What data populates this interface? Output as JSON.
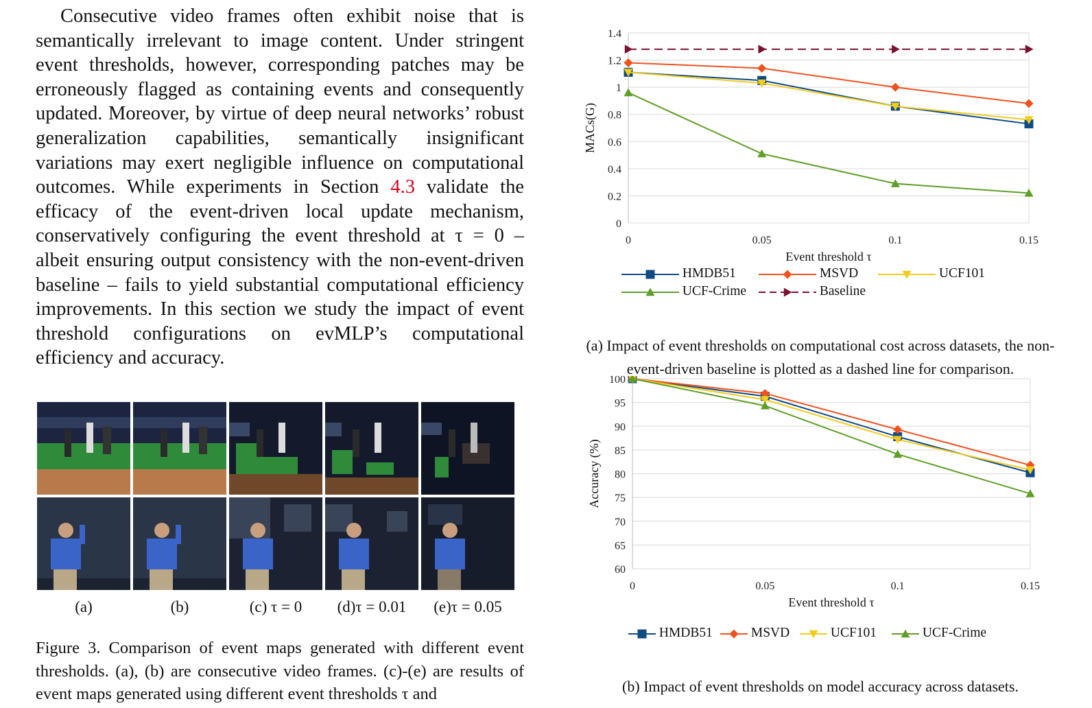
{
  "paragraph": {
    "before_ref": "Consecutive video frames often exhibit noise that is semantically irrelevant to image content. Under stringent event thresholds, however, corresponding patches may be erroneously flagged as containing events and consequently updated. Moreover, by virtue of deep neural networks’ robust generalization capabilities, semantically insignificant variations may exert negligible influence on computational outcomes. While experiments in Section ",
    "ref": "4.3",
    "after_ref": " validate the efficacy of the event-driven local update mechanism, conservatively configuring the event threshold at τ = 0 – albeit ensuring output consistency with the non-event-driven baseline – fails to yield substantial computational efficiency improvements. In this section we study the impact of event threshold configurations on evMLP’s computational efficiency and accuracy."
  },
  "figure3": {
    "sublabels": [
      "(a)",
      "(b)",
      "(c) τ = 0",
      "(d)τ = 0.01",
      "(e)τ = 0.05"
    ],
    "caption": "Figure 3. Comparison of event maps generated with different event thresholds. (a), (b) are consecutive video frames. (c)-(e) are results of event maps generated using different event thresholds τ and"
  },
  "colors": {
    "HMDB51": "#0e4a84",
    "MSVD": "#f0521e",
    "UCF101": "#f2cc1c",
    "UCF-Crime": "#5f9e28",
    "Baseline": "#7a1030"
  },
  "chart_data": [
    {
      "type": "line",
      "x": [
        0,
        0.05,
        0.1,
        0.15
      ],
      "xticks": [
        "0",
        "0.05",
        "0.1",
        "0.15"
      ],
      "xlabel": "Event threshold τ",
      "ylabel": "MACs(G)",
      "ylim": [
        0,
        1.4
      ],
      "yticks": [
        "0",
        "0.2",
        "0.4",
        "0.6",
        "0.8",
        "1",
        "1.2",
        "1.4"
      ],
      "grid": true,
      "series": [
        {
          "name": "HMDB51",
          "values": [
            1.11,
            1.05,
            0.86,
            0.73
          ],
          "marker": "square"
        },
        {
          "name": "MSVD",
          "values": [
            1.18,
            1.14,
            1.0,
            0.88
          ],
          "marker": "diamond"
        },
        {
          "name": "UCF101",
          "values": [
            1.11,
            1.03,
            0.86,
            0.76
          ],
          "marker": "triangle-down"
        },
        {
          "name": "UCF-Crime",
          "values": [
            0.96,
            0.51,
            0.29,
            0.22
          ],
          "marker": "triangle-up"
        },
        {
          "name": "Baseline",
          "values": [
            1.28,
            1.28,
            1.28,
            1.28
          ],
          "marker": "triangle-right",
          "dashed": true
        }
      ],
      "caption": "(a) Impact of event thresholds on computational cost across datasets, the non-event-driven baseline is plotted as a dashed line for comparison."
    },
    {
      "type": "line",
      "x": [
        0,
        0.05,
        0.1,
        0.15
      ],
      "xticks": [
        "0",
        "0.05",
        "0.1",
        "0.15"
      ],
      "xlabel": "Event threshold τ",
      "ylabel": "Accuracy (%)",
      "ylim": [
        60,
        100
      ],
      "yticks": [
        "60",
        "65",
        "70",
        "75",
        "80",
        "85",
        "90",
        "95",
        "100"
      ],
      "grid": true,
      "series": [
        {
          "name": "HMDB51",
          "values": [
            100,
            96.3,
            87.8,
            80.2
          ],
          "marker": "square"
        },
        {
          "name": "MSVD",
          "values": [
            100,
            96.9,
            89.3,
            81.8
          ],
          "marker": "diamond"
        },
        {
          "name": "UCF101",
          "values": [
            100,
            95.6,
            87.2,
            80.8
          ],
          "marker": "triangle-down"
        },
        {
          "name": "UCF-Crime",
          "values": [
            100,
            94.3,
            84.1,
            75.8
          ],
          "marker": "triangle-up"
        }
      ],
      "caption": "(b) Impact of event thresholds on model accuracy across datasets."
    }
  ]
}
